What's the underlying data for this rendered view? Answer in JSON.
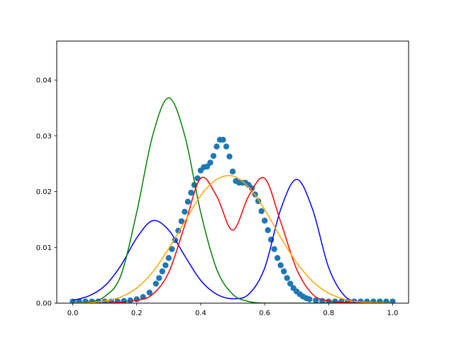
{
  "chart_data": {
    "type": "line",
    "title": "",
    "xlabel": "",
    "ylabel": "",
    "xlim": [
      -0.05,
      1.05
    ],
    "ylim": [
      0.0,
      0.047
    ],
    "grid": false,
    "x_ticks": [
      0.0,
      0.2,
      0.4,
      0.6,
      0.8,
      1.0
    ],
    "x_tick_labels": [
      "0.0",
      "0.2",
      "0.4",
      "0.6",
      "0.8",
      "1.0"
    ],
    "y_ticks": [
      0.0,
      0.01,
      0.02,
      0.03,
      0.04
    ],
    "y_tick_labels": [
      "0.00",
      "0.01",
      "0.02",
      "0.03",
      "0.04"
    ],
    "series": [
      {
        "kind": "line",
        "color": "#0000ff",
        "x": [
          0.0,
          0.05,
          0.1,
          0.15,
          0.2,
          0.25,
          0.3,
          0.35,
          0.4,
          0.45,
          0.5,
          0.55,
          0.6,
          0.65,
          0.7,
          0.75,
          0.8,
          0.85,
          0.9,
          0.95,
          1.0
        ],
        "y": [
          0.0005,
          0.0013,
          0.0031,
          0.0067,
          0.0117,
          0.0148,
          0.0131,
          0.0085,
          0.0041,
          0.0016,
          0.0008,
          0.0016,
          0.0063,
          0.0168,
          0.0222,
          0.0168,
          0.0064,
          0.0013,
          0.0002,
          0.0,
          0.0
        ]
      },
      {
        "kind": "line",
        "color": "#008000",
        "x": [
          0.0,
          0.05,
          0.1,
          0.15,
          0.2,
          0.25,
          0.3,
          0.35,
          0.4,
          0.45,
          0.5,
          0.55,
          0.6,
          0.65,
          0.7,
          0.8,
          0.9,
          1.0
        ],
        "y": [
          0.0,
          0.0002,
          0.0012,
          0.0049,
          0.0163,
          0.0301,
          0.0368,
          0.0301,
          0.0163,
          0.0061,
          0.0016,
          0.0003,
          0.0,
          0.0,
          0.0,
          0.0,
          0.0,
          0.0
        ]
      },
      {
        "kind": "line",
        "color": "#ff0000",
        "x": [
          0.0,
          0.1,
          0.2,
          0.25,
          0.3,
          0.35,
          0.4,
          0.45,
          0.5,
          0.55,
          0.6,
          0.65,
          0.7,
          0.75,
          0.8,
          0.9,
          1.0
        ],
        "y": [
          0.0,
          0.0,
          0.0005,
          0.0016,
          0.0055,
          0.0139,
          0.0224,
          0.0192,
          0.0131,
          0.0192,
          0.0224,
          0.0146,
          0.0061,
          0.0016,
          0.0004,
          0.0,
          0.0
        ]
      },
      {
        "kind": "line",
        "color": "#ffa500",
        "x": [
          0.0,
          0.05,
          0.1,
          0.15,
          0.2,
          0.25,
          0.3,
          0.35,
          0.4,
          0.45,
          0.5,
          0.55,
          0.6,
          0.65,
          0.7,
          0.75,
          0.8,
          0.85,
          0.9,
          0.95,
          1.0
        ],
        "y": [
          0.0,
          0.0001,
          0.0004,
          0.0011,
          0.0027,
          0.0056,
          0.0098,
          0.0146,
          0.0193,
          0.0222,
          0.0228,
          0.0208,
          0.0168,
          0.0118,
          0.0073,
          0.0039,
          0.0018,
          0.0007,
          0.0002,
          0.0001,
          0.0
        ]
      },
      {
        "kind": "scatter",
        "color": "#1f77b4",
        "x": [
          0.0,
          0.02,
          0.04,
          0.06,
          0.08,
          0.1,
          0.12,
          0.14,
          0.16,
          0.18,
          0.2,
          0.22,
          0.24,
          0.26,
          0.27,
          0.28,
          0.29,
          0.3,
          0.31,
          0.32,
          0.33,
          0.34,
          0.35,
          0.36,
          0.37,
          0.38,
          0.39,
          0.4,
          0.41,
          0.42,
          0.43,
          0.44,
          0.45,
          0.46,
          0.47,
          0.48,
          0.49,
          0.5,
          0.51,
          0.52,
          0.53,
          0.54,
          0.55,
          0.56,
          0.57,
          0.58,
          0.59,
          0.6,
          0.61,
          0.62,
          0.63,
          0.64,
          0.65,
          0.66,
          0.67,
          0.68,
          0.69,
          0.7,
          0.71,
          0.72,
          0.73,
          0.74,
          0.76,
          0.78,
          0.8,
          0.82,
          0.84,
          0.86,
          0.88,
          0.9,
          0.92,
          0.94,
          0.96,
          0.98,
          1.0
        ],
        "y": [
          0.0003,
          0.0003,
          0.0003,
          0.0003,
          0.0003,
          0.0003,
          0.0003,
          0.0003,
          0.0004,
          0.0005,
          0.0007,
          0.0011,
          0.0019,
          0.0035,
          0.0045,
          0.0057,
          0.0068,
          0.0081,
          0.0097,
          0.0113,
          0.013,
          0.0147,
          0.0164,
          0.0182,
          0.0198,
          0.0212,
          0.0224,
          0.0238,
          0.0244,
          0.0245,
          0.0252,
          0.0264,
          0.0281,
          0.0293,
          0.0293,
          0.0281,
          0.0263,
          0.0236,
          0.0219,
          0.0216,
          0.0216,
          0.0216,
          0.0212,
          0.0206,
          0.0195,
          0.0183,
          0.0165,
          0.0148,
          0.0131,
          0.0114,
          0.0097,
          0.0081,
          0.0068,
          0.0057,
          0.0045,
          0.0035,
          0.0027,
          0.0021,
          0.0016,
          0.0012,
          0.0009,
          0.0007,
          0.0005,
          0.0004,
          0.0003,
          0.0003,
          0.0003,
          0.0003,
          0.0003,
          0.0003,
          0.0003,
          0.0003,
          0.0003,
          0.0003,
          0.0003
        ]
      }
    ]
  }
}
